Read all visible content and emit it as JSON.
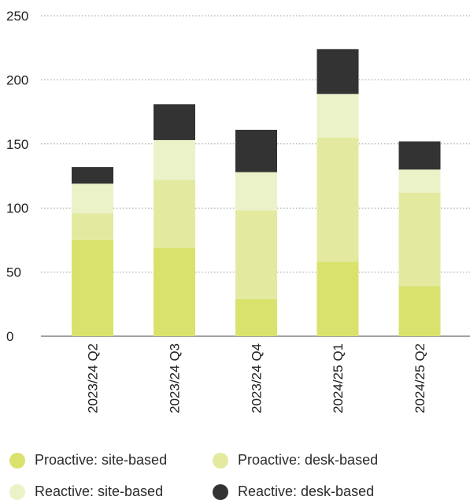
{
  "chart_data": {
    "type": "bar",
    "stacked": true,
    "categories": [
      "2023/24 Q2",
      "2023/24 Q3",
      "2023/24 Q4",
      "2024/25 Q1",
      "2024/25 Q2"
    ],
    "series": [
      {
        "name": "Proactive: site-based",
        "color": "#d9e26d",
        "values": [
          75,
          69,
          29,
          58,
          39
        ]
      },
      {
        "name": "Proactive: desk-based",
        "color": "#e3ea9f",
        "values": [
          21,
          53,
          69,
          97,
          73
        ]
      },
      {
        "name": "Reactive: site-based",
        "color": "#ecf2c8",
        "values": [
          23,
          31,
          30,
          34,
          18
        ]
      },
      {
        "name": "Reactive: desk-based",
        "color": "#333333",
        "values": [
          13,
          28,
          33,
          35,
          22
        ]
      }
    ],
    "y_ticks": [
      0,
      50,
      100,
      150,
      200,
      250
    ],
    "ylim": [
      0,
      250
    ],
    "grid": true,
    "legend_position": "bottom"
  }
}
